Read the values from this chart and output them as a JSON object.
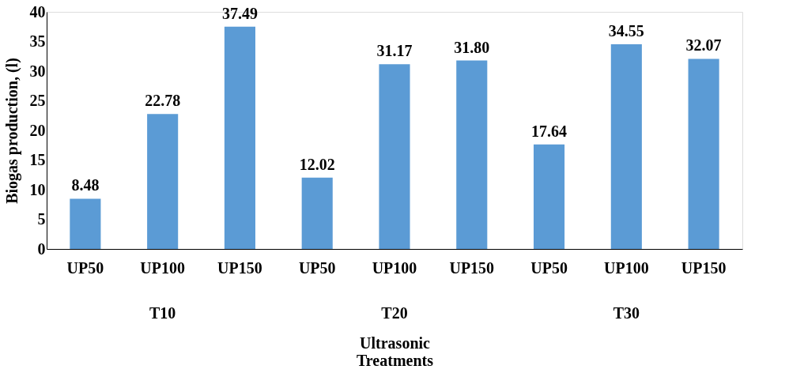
{
  "chart_data": {
    "type": "bar",
    "categories": [
      "UP50",
      "UP100",
      "UP150",
      "UP50",
      "UP100",
      "UP150",
      "UP50",
      "UP100",
      "UP150"
    ],
    "values": [
      8.48,
      22.78,
      37.49,
      12.02,
      31.17,
      31.8,
      17.64,
      34.55,
      32.07
    ],
    "color": "#5b9bd5",
    "data_labels": true,
    "value_labels": [
      "8.48",
      "22.78",
      "37.49",
      "12.02",
      "31.17",
      "31.80",
      "17.64",
      "34.55",
      "32.07"
    ],
    "ylabel": "Biogas production, (l)",
    "xlabel": "Ultrasonic Treatments",
    "annotations": [
      "T10",
      "T20",
      "T30"
    ],
    "ylim": [
      0,
      40
    ],
    "yticks": [
      0,
      5,
      10,
      15,
      20,
      25,
      30,
      35,
      40
    ],
    "grid": false
  }
}
